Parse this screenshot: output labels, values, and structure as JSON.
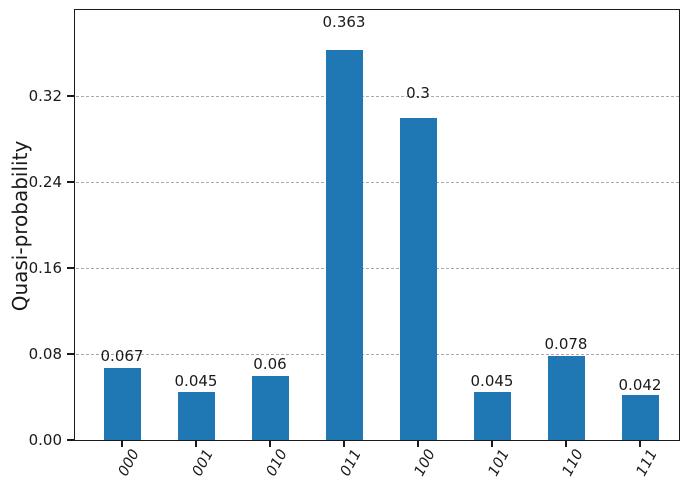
{
  "chart_data": {
    "type": "bar",
    "title": "",
    "categories": [
      "000",
      "001",
      "010",
      "011",
      "100",
      "101",
      "110",
      "111"
    ],
    "values": [
      0.067,
      0.045,
      0.06,
      0.363,
      0.3,
      0.045,
      0.078,
      0.042
    ],
    "bar_labels": [
      "0.067",
      "0.045",
      "0.06",
      "0.363",
      "0.3",
      "0.045",
      "0.078",
      "0.042"
    ],
    "xlabel": "",
    "ylabel": "Quasi-probability",
    "ylim": [
      0,
      0.4
    ],
    "yticks": [
      0.0,
      0.08,
      0.16,
      0.24,
      0.32
    ],
    "ytick_labels": [
      "0.00",
      "0.08",
      "0.16",
      "0.24",
      "0.32"
    ],
    "grid": "horizontal-dashed",
    "legend": "none",
    "colors": {
      "bar": "#1f77b4",
      "grid": "#b3a4b3",
      "axis": "#1a1a1a",
      "text": "#1a1a1a",
      "background": "#ffffff"
    }
  }
}
